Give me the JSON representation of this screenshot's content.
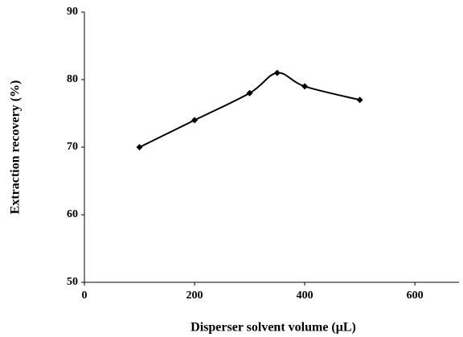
{
  "chart_data": {
    "type": "line",
    "x_label": "Disperser solvent volume (μL)",
    "y_label": "Extraction recovery (%)",
    "x": [
      100,
      200,
      300,
      350,
      400,
      500
    ],
    "series": [
      {
        "color": "#000000",
        "values": [
          70,
          74,
          78,
          81,
          79,
          77
        ]
      }
    ],
    "xlim": [
      0,
      680
    ],
    "xticks": [
      0,
      200,
      400,
      600
    ],
    "ylim": [
      50,
      90
    ],
    "yticks": [
      50,
      60,
      70,
      80,
      90
    ],
    "grid": false,
    "smooth": true
  }
}
